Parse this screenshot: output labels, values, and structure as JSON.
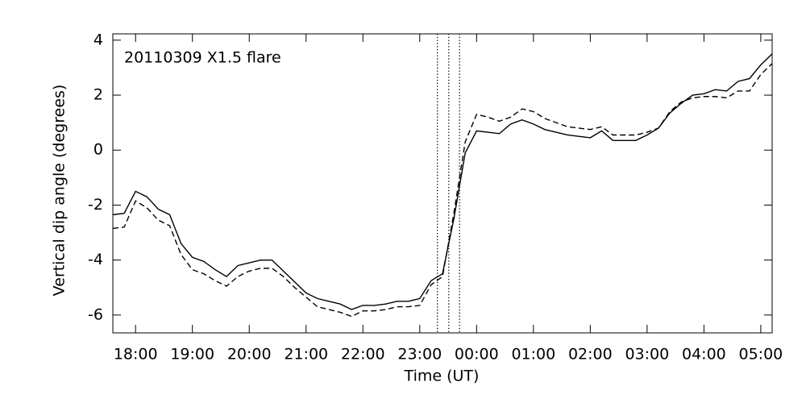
{
  "chart_data": {
    "type": "line",
    "annotation": "20110309 X1.5 flare",
    "xlabel": "Time (UT)",
    "ylabel": "Vertical dip angle (degrees)",
    "x": [
      17.6,
      17.8,
      18,
      18.2,
      18.4,
      18.6,
      18.8,
      19,
      19.2,
      19.4,
      19.6,
      19.8,
      20,
      20.2,
      20.4,
      20.6,
      20.8,
      21,
      21.2,
      21.4,
      21.6,
      21.8,
      22,
      22.2,
      22.4,
      22.6,
      22.8,
      23,
      23.2,
      23.4,
      23.6,
      23.8,
      24,
      24.2,
      24.4,
      24.6,
      24.8,
      25,
      25.2,
      25.4,
      25.6,
      25.8,
      26,
      26.2,
      26.4,
      26.6,
      26.8,
      27,
      27.2,
      27.4,
      27.6,
      27.8,
      28,
      28.2,
      28.4,
      28.6,
      28.8,
      29,
      29.2
    ],
    "series": [
      {
        "color": "#000000",
        "linestyle": "solid",
        "values": [
          -2.35,
          -2.3,
          -1.5,
          -1.7,
          -2.15,
          -2.35,
          -3.4,
          -3.9,
          -4.05,
          -4.35,
          -4.6,
          -4.2,
          -4.1,
          -4.0,
          -4.0,
          -4.4,
          -4.8,
          -5.2,
          -5.4,
          -5.5,
          -5.6,
          -5.8,
          -5.65,
          -5.65,
          -5.6,
          -5.5,
          -5.5,
          -5.4,
          -4.75,
          -4.5,
          -2.5,
          -0.1,
          0.7,
          0.65,
          0.6,
          0.95,
          1.1,
          0.95,
          0.75,
          0.65,
          0.55,
          0.5,
          0.45,
          0.7,
          0.35,
          0.35,
          0.35,
          0.55,
          0.8,
          1.35,
          1.7,
          2.0,
          2.05,
          2.2,
          2.15,
          2.5,
          2.6,
          3.1,
          3.5
        ]
      },
      {
        "color": "#000000",
        "linestyle": "dashed",
        "values": [
          -2.85,
          -2.8,
          -1.85,
          -2.1,
          -2.55,
          -2.75,
          -3.8,
          -4.35,
          -4.5,
          -4.75,
          -4.95,
          -4.6,
          -4.4,
          -4.3,
          -4.3,
          -4.6,
          -5.0,
          -5.35,
          -5.7,
          -5.8,
          -5.9,
          -6.05,
          -5.85,
          -5.85,
          -5.8,
          -5.7,
          -5.7,
          -5.65,
          -4.9,
          -4.6,
          -2.3,
          0.3,
          1.3,
          1.2,
          1.05,
          1.2,
          1.5,
          1.4,
          1.15,
          1.0,
          0.85,
          0.8,
          0.75,
          0.85,
          0.55,
          0.55,
          0.55,
          0.65,
          0.8,
          1.4,
          1.75,
          1.9,
          1.95,
          1.95,
          1.9,
          2.15,
          2.15,
          2.75,
          3.15
        ]
      }
    ],
    "vlines": [
      23.31,
      23.51,
      23.7
    ],
    "xlim": [
      17.6,
      29.2
    ],
    "xticks": [
      {
        "value": 18,
        "label": "18:00"
      },
      {
        "value": 19,
        "label": "19:00"
      },
      {
        "value": 20,
        "label": "20:00"
      },
      {
        "value": 21,
        "label": "21:00"
      },
      {
        "value": 22,
        "label": "22:00"
      },
      {
        "value": 23,
        "label": "23:00"
      },
      {
        "value": 24,
        "label": "00:00"
      },
      {
        "value": 25,
        "label": "01:00"
      },
      {
        "value": 26,
        "label": "02:00"
      },
      {
        "value": 27,
        "label": "03:00"
      },
      {
        "value": 28,
        "label": "04:00"
      },
      {
        "value": 29,
        "label": "05:00"
      }
    ],
    "ylim": [
      -6.65,
      4.23
    ],
    "yticks": [
      -6,
      -4,
      -2,
      0,
      2,
      4
    ]
  }
}
